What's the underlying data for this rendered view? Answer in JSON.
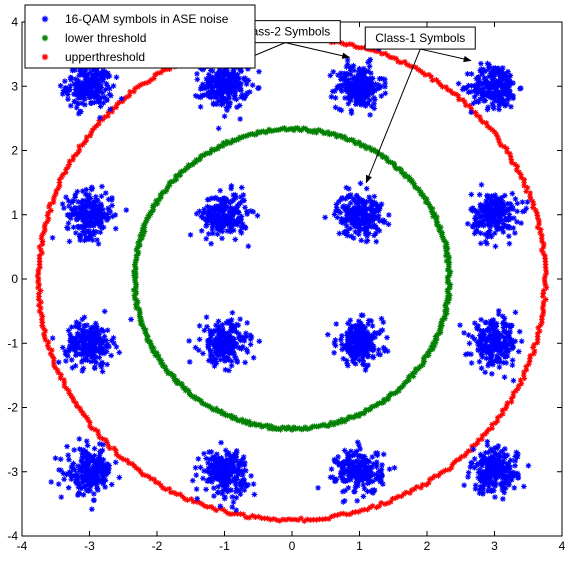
{
  "chart_data": {
    "type": "scatter",
    "xlim": [
      -4,
      4
    ],
    "ylim": [
      -4,
      4
    ],
    "x_ticks": [
      -4,
      -3,
      -2,
      -1,
      0,
      1,
      2,
      3,
      4
    ],
    "y_ticks": [
      -4,
      -3,
      -2,
      -1,
      0,
      1,
      2,
      3,
      4
    ],
    "x_tick_labels": [
      "-4",
      "-3",
      "-2",
      "-1",
      "0",
      "1",
      "2",
      "3",
      "4"
    ],
    "y_tick_labels": [
      "-4",
      "-3",
      "-2",
      "-1",
      "0",
      "1",
      "2",
      "3",
      "4"
    ],
    "grid": false,
    "legend_position": "top-left",
    "series": [
      {
        "name": "16-QAM symbols in ASE noise",
        "color": "#0000ff",
        "marker": "*",
        "cluster_centers": [
          [
            -3,
            3
          ],
          [
            -1,
            3
          ],
          [
            1,
            3
          ],
          [
            3,
            3
          ],
          [
            -3,
            1
          ],
          [
            -1,
            1
          ],
          [
            1,
            1
          ],
          [
            3,
            1
          ],
          [
            -3,
            -1
          ],
          [
            -1,
            -1
          ],
          [
            1,
            -1
          ],
          [
            3,
            -1
          ],
          [
            -3,
            -3
          ],
          [
            -1,
            -3
          ],
          [
            1,
            -3
          ],
          [
            3,
            -3
          ]
        ],
        "cluster_spread": 0.17
      },
      {
        "name": "lower threshold",
        "color": "#008000",
        "marker": "*",
        "shape": "circle",
        "radius": 2.33
      },
      {
        "name": "upperthreshold",
        "color": "#ff0000",
        "marker": "*",
        "shape": "circle",
        "radius": 3.75
      }
    ],
    "annotations": [
      {
        "label": "Class-2 Symbols",
        "box_center": [
          -0.1,
          3.85
        ],
        "arrows_to": [
          [
            -0.85,
            3.35
          ],
          [
            0.85,
            3.45
          ]
        ]
      },
      {
        "label": "Class-1 Symbols",
        "box_center": [
          1.9,
          3.75
        ],
        "arrows_to": [
          [
            1.1,
            1.5
          ],
          [
            2.65,
            3.4
          ]
        ]
      }
    ]
  }
}
